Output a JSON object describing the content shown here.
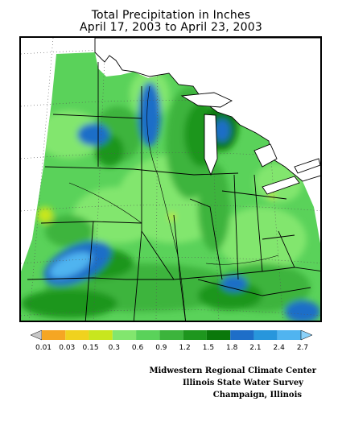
{
  "title": {
    "line1": "Total Precipitation in Inches",
    "line2": "April 17, 2003 to April 23, 2003"
  },
  "legend": {
    "labels": [
      "0.01",
      "0.03",
      "0.15",
      "0.3",
      "0.6",
      "0.9",
      "1.2",
      "1.5",
      "1.8",
      "2.1",
      "2.4",
      "2.7"
    ],
    "colors": [
      "#c8c8c8",
      "#f5a623",
      "#f0d21e",
      "#c8e61e",
      "#82e66e",
      "#5ad25a",
      "#3cb43c",
      "#1e961e",
      "#0a780a",
      "#1e6ec8",
      "#2896dc",
      "#50b4f0",
      "#8cd2fa"
    ]
  },
  "credits": {
    "line1": "Midwestern Regional Climate Center",
    "line2": "Illinois State Water Survey",
    "line3": "Champaign, Illinois"
  },
  "map": {
    "region": "Midwest United States",
    "variable": "Total Precipitation",
    "units": "inches"
  }
}
